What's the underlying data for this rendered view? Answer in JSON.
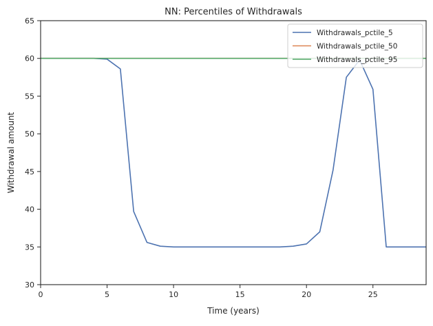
{
  "chart_data": {
    "type": "line",
    "title": "NN: Percentiles of Withdrawals",
    "xlabel": "Time (years)",
    "ylabel": "Withdrawal amount",
    "xlim": [
      0,
      29
    ],
    "ylim": [
      30,
      65
    ],
    "xticks": [
      0,
      5,
      10,
      15,
      20,
      25
    ],
    "yticks": [
      30,
      35,
      40,
      45,
      50,
      55,
      60,
      65
    ],
    "grid": false,
    "legend_position": "top-right",
    "x": [
      0,
      1,
      2,
      3,
      4,
      5,
      6,
      7,
      8,
      9,
      10,
      11,
      12,
      13,
      14,
      15,
      16,
      17,
      18,
      19,
      20,
      21,
      22,
      23,
      24,
      25,
      26,
      27,
      28,
      29
    ],
    "series": [
      {
        "name": "Withdrawals_pctile_5",
        "color": "#4c72b0",
        "values": [
          60,
          60,
          60,
          60,
          60,
          59.9,
          58.6,
          39.7,
          35.6,
          35.1,
          35.0,
          35.0,
          35.0,
          35.0,
          35.0,
          35.0,
          35.0,
          35.0,
          35.0,
          35.1,
          35.4,
          37.0,
          45.2,
          57.5,
          59.8,
          55.9,
          35.0,
          35.0,
          35.0,
          35.0
        ]
      },
      {
        "name": "Withdrawals_pctile_50",
        "color": "#dd8452",
        "values": [
          60,
          60,
          60,
          60,
          60,
          60,
          60,
          60,
          60,
          60,
          60,
          60,
          60,
          60,
          60,
          60,
          60,
          60,
          60,
          60,
          60,
          60,
          60,
          60,
          60,
          60,
          60,
          60,
          60,
          60
        ]
      },
      {
        "name": "Withdrawals_pctile_95",
        "color": "#55a868",
        "values": [
          60,
          60,
          60,
          60,
          60,
          60,
          60,
          60,
          60,
          60,
          60,
          60,
          60,
          60,
          60,
          60,
          60,
          60,
          60,
          60,
          60,
          60,
          60,
          60,
          60,
          60,
          60,
          60,
          60,
          60
        ]
      }
    ]
  }
}
